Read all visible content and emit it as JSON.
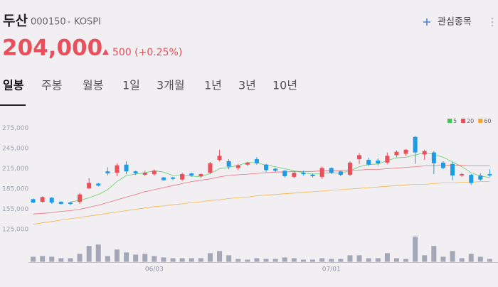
{
  "header": {
    "name": "두산",
    "code": "000150",
    "market": "KOSPI",
    "watch": "관심종목",
    "price": "204,000",
    "change": "500 (+0.25%)"
  },
  "tabs": [
    "일봉",
    "주봉",
    "월봉",
    "1일",
    "3개월",
    "1년",
    "3년",
    "10년"
  ],
  "chart_data": [
    {
      "type": "candlestick",
      "categories": [
        null,
        null,
        null,
        null,
        null,
        null,
        null,
        null,
        null,
        null,
        null,
        null,
        null,
        "06/03",
        null,
        null,
        null,
        null,
        null,
        null,
        null,
        null,
        null,
        null,
        null,
        null,
        null,
        null,
        null,
        null,
        null,
        null,
        "07/01",
        null,
        null,
        null,
        null,
        null,
        null,
        null,
        null,
        null,
        null,
        null,
        null,
        null,
        null,
        null,
        null,
        null
      ],
      "open": [
        170000,
        166000,
        172000,
        166000,
        165000,
        166000,
        186000,
        193000,
        211000,
        209000,
        221000,
        211000,
        206000,
        207000,
        202000,
        202000,
        199000,
        208000,
        204000,
        209000,
        228000,
        226000,
        216000,
        221000,
        229000,
        221000,
        215000,
        212000,
        203000,
        209000,
        206000,
        203000,
        216000,
        211000,
        206000,
        229000,
        228000,
        227000,
        224000,
        235000,
        237000,
        262000,
        236000,
        239000,
        224000,
        222000,
        205000,
        206000,
        205000,
        207000
      ],
      "high": [
        171000,
        174000,
        173000,
        167000,
        166000,
        179000,
        201000,
        194000,
        217000,
        223000,
        226000,
        212000,
        212000,
        214000,
        203000,
        203000,
        209000,
        209000,
        208000,
        225000,
        243000,
        229000,
        222000,
        225000,
        232000,
        222000,
        216000,
        213000,
        211000,
        212000,
        208000,
        218000,
        217000,
        212000,
        226000,
        238000,
        231000,
        230000,
        239000,
        242000,
        244000,
        263000,
        243000,
        241000,
        226000,
        225000,
        209000,
        207000,
        208000,
        214000
      ],
      "low": [
        164000,
        165000,
        163000,
        162000,
        161000,
        163000,
        185000,
        189000,
        205000,
        204000,
        207000,
        206000,
        204000,
        205000,
        197000,
        198000,
        197000,
        203000,
        202000,
        207000,
        226000,
        214000,
        213000,
        219000,
        221000,
        210000,
        210000,
        202000,
        201000,
        205000,
        202000,
        200000,
        207000,
        204000,
        204000,
        222000,
        219000,
        220000,
        222000,
        232000,
        234000,
        222000,
        228000,
        207000,
        214000,
        198000,
        203000,
        191000,
        197000,
        203000
      ],
      "close": [
        165000,
        173000,
        165000,
        163000,
        163000,
        177000,
        194000,
        190000,
        208000,
        220000,
        211000,
        208000,
        209000,
        212000,
        198000,
        200000,
        207000,
        205000,
        207000,
        223000,
        234000,
        218000,
        220000,
        224000,
        223000,
        213000,
        212000,
        204000,
        209000,
        207000,
        204000,
        216000,
        209000,
        206000,
        224000,
        235000,
        221000,
        223000,
        234000,
        240000,
        243000,
        239000,
        241000,
        223000,
        216000,
        205000,
        207000,
        194000,
        199000,
        205000
      ],
      "up_color": "#e8505b",
      "down_color": "#1c9be6",
      "series": [
        {
          "name": "5",
          "color": "#3cc84a",
          "values": [
            null,
            null,
            null,
            null,
            166000,
            168000,
            172000,
            177000,
            184000,
            196000,
            205000,
            207000,
            209000,
            212000,
            210000,
            205000,
            205000,
            204000,
            203000,
            208000,
            215000,
            217000,
            220000,
            224000,
            224000,
            220000,
            218000,
            215000,
            212000,
            209000,
            207000,
            208000,
            209000,
            208000,
            212000,
            218000,
            221000,
            222000,
            227000,
            231000,
            232000,
            235000,
            239000,
            236000,
            232000,
            225000,
            218000,
            209000,
            204000,
            202000
          ]
        },
        {
          "name": "20",
          "color": "#e8505b",
          "values": [
            148000,
            149000,
            150000,
            152000,
            153000,
            155000,
            158000,
            161000,
            165000,
            169000,
            173000,
            177000,
            181000,
            184000,
            187000,
            190000,
            193000,
            196000,
            198000,
            200000,
            203000,
            205000,
            206000,
            207000,
            208000,
            209000,
            210000,
            210000,
            211000,
            211000,
            211000,
            212000,
            212000,
            212000,
            213000,
            213000,
            214000,
            214000,
            215000,
            216000,
            217000,
            218000,
            219000,
            219000,
            220000,
            220000,
            220000,
            219000,
            219000,
            219000
          ]
        },
        {
          "name": "60",
          "color": "#f5a623",
          "values": [
            133000,
            135000,
            137000,
            139000,
            141000,
            143000,
            145000,
            147000,
            149000,
            151000,
            153000,
            155000,
            157000,
            159000,
            160000,
            162000,
            163000,
            165000,
            166000,
            168000,
            169000,
            171000,
            172000,
            173000,
            175000,
            176000,
            177000,
            178000,
            179000,
            180000,
            181000,
            182000,
            183000,
            184000,
            185000,
            186000,
            187000,
            188000,
            189000,
            190000,
            191000,
            192000,
            192000,
            193000,
            194000,
            194000,
            195000,
            195000,
            196000,
            196000
          ]
        }
      ],
      "ylim": [
        110000,
        290000
      ],
      "yticks": [
        {
          "value": 275000,
          "label": "275,000"
        },
        {
          "value": 245000,
          "label": "245,000"
        },
        {
          "value": 215000,
          "label": "215,000"
        },
        {
          "value": 185000,
          "label": "185,000"
        },
        {
          "value": 155000,
          "label": "155,000"
        },
        {
          "value": 125000,
          "label": "125,000"
        }
      ],
      "legend": "top-right",
      "grid": false
    },
    {
      "type": "bar",
      "values": [
        7,
        8,
        7,
        5,
        5,
        11,
        22,
        24,
        8,
        17,
        13,
        10,
        11,
        8,
        6,
        5,
        5,
        5,
        5,
        12,
        15,
        9,
        4,
        3,
        5,
        4,
        4,
        6,
        5,
        3,
        3,
        5,
        4,
        4,
        9,
        9,
        5,
        5,
        12,
        5,
        4,
        35,
        9,
        22,
        7,
        15,
        5,
        11,
        7,
        4
      ],
      "color": "#a3a8b8",
      "ylim": [
        0,
        40
      ]
    }
  ]
}
